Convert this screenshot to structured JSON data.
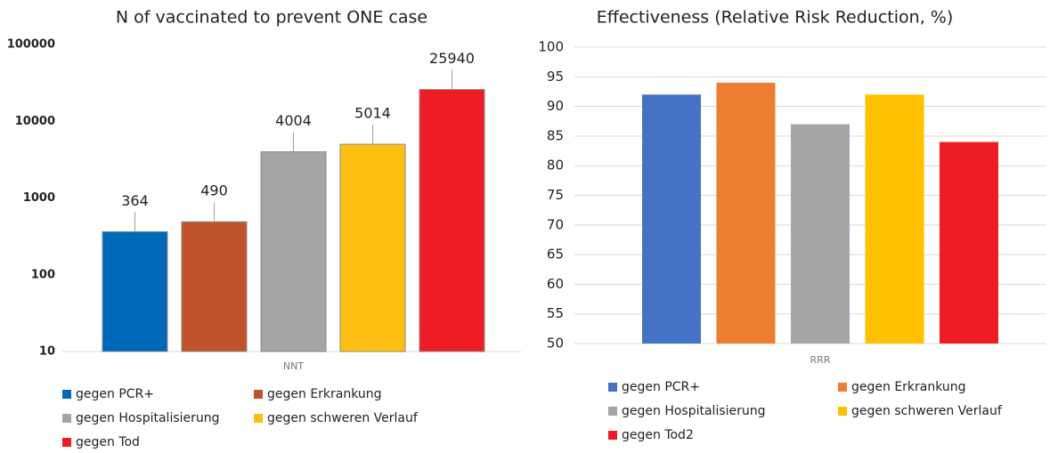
{
  "chart_data": [
    {
      "type": "bar",
      "title": "N of vaccinated to prevent ONE case",
      "categories": [
        "NNT"
      ],
      "series": [
        {
          "name": "gegen PCR+",
          "color": "#0068b8",
          "values": [
            364
          ]
        },
        {
          "name": "gegen Erkrankung",
          "color": "#c0532a",
          "values": [
            490
          ]
        },
        {
          "name": "gegen Hospitalisierung",
          "color": "#a5a5a5",
          "values": [
            4004
          ]
        },
        {
          "name": "gegen schweren Verlauf",
          "color": "#fdbf11",
          "values": [
            5014
          ]
        },
        {
          "name": "gegen Tod",
          "color": "#ee1c24",
          "values": [
            25940
          ]
        }
      ],
      "ylim": [
        10,
        100000
      ],
      "yticks": [
        10,
        100,
        1000,
        10000,
        100000
      ],
      "log_scale": true,
      "data_labels": true,
      "grid": false,
      "legend": "bottom"
    },
    {
      "type": "bar",
      "title": "Effectiveness (Relative Risk Reduction, %)",
      "categories": [
        "RRR"
      ],
      "series": [
        {
          "name": "gegen PCR+",
          "color": "#4472c4",
          "values": [
            92
          ]
        },
        {
          "name": "gegen Erkrankung",
          "color": "#ed7d31",
          "values": [
            94
          ]
        },
        {
          "name": "gegen Hospitalisierung",
          "color": "#a5a5a5",
          "values": [
            87
          ]
        },
        {
          "name": "gegen schweren Verlauf",
          "color": "#ffc000",
          "values": [
            92
          ]
        },
        {
          "name": "gegen Tod2",
          "color": "#ee1c24",
          "values": [
            84
          ]
        }
      ],
      "ylim": [
        50,
        100
      ],
      "yticks": [
        50,
        55,
        60,
        65,
        70,
        75,
        80,
        85,
        90,
        95,
        100
      ],
      "log_scale": false,
      "data_labels": false,
      "grid": true,
      "legend": "bottom"
    }
  ]
}
